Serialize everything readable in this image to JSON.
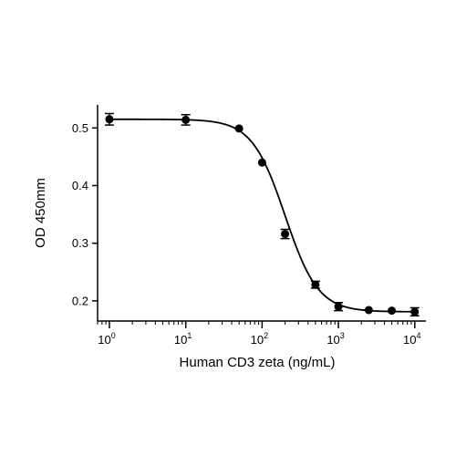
{
  "chart_data": {
    "type": "scatter",
    "title": "",
    "xlabel": "Human CD3 zeta (ng/mL)",
    "ylabel": "OD 450mm",
    "x_scale": "log10",
    "xlim": [
      0.7,
      14000
    ],
    "ylim": [
      0.165,
      0.54
    ],
    "x_ticks": [
      {
        "value": 1,
        "base": "10",
        "exp": "0"
      },
      {
        "value": 10,
        "base": "10",
        "exp": "1"
      },
      {
        "value": 100,
        "base": "10",
        "exp": "2"
      },
      {
        "value": 1000,
        "base": "10",
        "exp": "3"
      },
      {
        "value": 10000,
        "base": "10",
        "exp": "4"
      }
    ],
    "y_ticks": [
      {
        "value": 0.2,
        "label": "0.2"
      },
      {
        "value": 0.3,
        "label": "0.3"
      },
      {
        "value": 0.4,
        "label": "0.4"
      },
      {
        "value": 0.5,
        "label": "0.5"
      }
    ],
    "grid": false,
    "series": [
      {
        "points": [
          {
            "x": 1,
            "y": 0.515,
            "err": 0.01
          },
          {
            "x": 10,
            "y": 0.514,
            "err": 0.009
          },
          {
            "x": 50,
            "y": 0.499,
            "err": 0
          },
          {
            "x": 100,
            "y": 0.44,
            "err": 0
          },
          {
            "x": 200,
            "y": 0.316,
            "err": 0.008
          },
          {
            "x": 500,
            "y": 0.228,
            "err": 0.006
          },
          {
            "x": 1000,
            "y": 0.19,
            "err": 0.007
          },
          {
            "x": 2500,
            "y": 0.184,
            "err": 0
          },
          {
            "x": 5000,
            "y": 0.183,
            "err": 0
          },
          {
            "x": 10000,
            "y": 0.181,
            "err": 0.007
          }
        ]
      }
    ],
    "fit_curve": {
      "model": "4PL",
      "top": 0.515,
      "bottom": 0.181,
      "ec50": 200,
      "hill": 2.0
    }
  }
}
